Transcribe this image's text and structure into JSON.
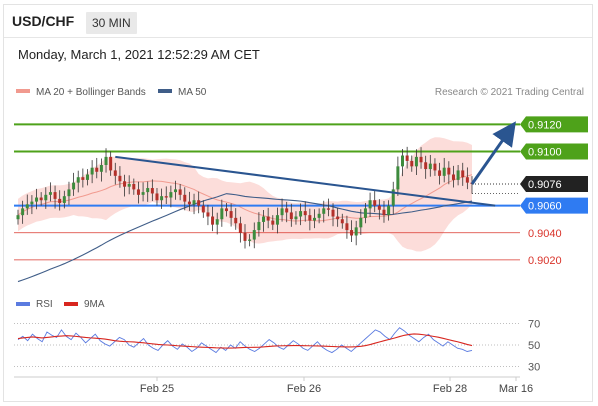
{
  "header": {
    "symbol": "USD/CHF",
    "timeframe": "30 MIN"
  },
  "date_label": "Monday, March 1, 2021 12:52:29 AM CET",
  "legend": {
    "ma20_bb": "MA 20 + Bollinger Bands",
    "ma50": "MA 50",
    "credit": "Research © 2021 Trading Central",
    "rsi": "RSI",
    "rsi_ma": "9MA"
  },
  "colors": {
    "green": "#4ea21a",
    "red": "#d9342b",
    "blue": "#2f7bf2",
    "trend": "#2a5590",
    "bb_fill": "#fbd7d3",
    "ma20": "#f19a8f",
    "ma50": "#3f5d88",
    "candle_up": "#3d8b3d",
    "candle_down": "#b3302a",
    "rsi": "#5b7be0",
    "rsi_ma": "#d8261f",
    "price_tag": "#222222"
  },
  "chart_data": [
    {
      "type": "candlestick",
      "title": "USD/CHF",
      "ylim": [
        0.9,
        0.9135
      ],
      "x_tick_labels": [
        "Feb 25",
        "Feb 26",
        "Feb 28",
        "Mar 16"
      ],
      "levels": [
        {
          "value": 0.912,
          "label": "0.9120",
          "kind": "resistance"
        },
        {
          "value": 0.91,
          "label": "0.9100",
          "kind": "resistance"
        },
        {
          "value": 0.9076,
          "label": "0.9076",
          "kind": "last"
        },
        {
          "value": 0.906,
          "label": "0.9060",
          "kind": "pivot"
        },
        {
          "value": 0.904,
          "label": "0.9040",
          "kind": "support"
        },
        {
          "value": 0.902,
          "label": "0.9020",
          "kind": "support"
        }
      ],
      "candle_closes": [
        0.9053,
        0.9058,
        0.9061,
        0.9063,
        0.9066,
        0.9064,
        0.9068,
        0.907,
        0.9065,
        0.9062,
        0.9067,
        0.9072,
        0.9077,
        0.9081,
        0.9079,
        0.9083,
        0.9088,
        0.9085,
        0.909,
        0.9096,
        0.9086,
        0.9082,
        0.9078,
        0.9074,
        0.9076,
        0.9072,
        0.9068,
        0.907,
        0.9073,
        0.9069,
        0.9064,
        0.9067,
        0.9066,
        0.907,
        0.9072,
        0.9068,
        0.9063,
        0.9061,
        0.9064,
        0.906,
        0.9055,
        0.9052,
        0.9046,
        0.905,
        0.9058,
        0.9056,
        0.9051,
        0.9047,
        0.904,
        0.9034,
        0.9035,
        0.9042,
        0.9048,
        0.9052,
        0.9049,
        0.9046,
        0.9053,
        0.9058,
        0.9055,
        0.905,
        0.9052,
        0.9056,
        0.9053,
        0.9049,
        0.9051,
        0.9054,
        0.9058,
        0.9057,
        0.9052,
        0.905,
        0.9047,
        0.9042,
        0.9038,
        0.9044,
        0.9051,
        0.9058,
        0.9064,
        0.906,
        0.9057,
        0.9053,
        0.906,
        0.9072,
        0.9089,
        0.9097,
        0.9093,
        0.9089,
        0.9096,
        0.9092,
        0.9087,
        0.9091,
        0.9086,
        0.9082,
        0.9088,
        0.9083,
        0.9079,
        0.9086,
        0.9081,
        0.9077,
        0.9076
      ],
      "ma50_start": 0.9004,
      "trendlines": [
        {
          "from": {
            "i": 21,
            "y": 0.9096
          },
          "to": {
            "i": 103,
            "y": 0.906
          }
        },
        {
          "from": {
            "i": 98,
            "y": 0.9076
          },
          "to": {
            "i": 106,
            "y": 0.9115
          },
          "kind": "forecast-arrow"
        }
      ]
    },
    {
      "type": "line",
      "title": "RSI",
      "ylim": [
        25,
        75
      ],
      "y_tick_labels": [
        "70",
        "50",
        "30"
      ],
      "series": [
        {
          "name": "RSI",
          "values": [
            55,
            58,
            54,
            60,
            56,
            53,
            62,
            59,
            57,
            64,
            58,
            55,
            61,
            57,
            52,
            56,
            60,
            54,
            51,
            49,
            53,
            57,
            55,
            50,
            48,
            52,
            56,
            50,
            47,
            45,
            50,
            54,
            49,
            46,
            51,
            48,
            44,
            47,
            52,
            49,
            46,
            43,
            48,
            45,
            50,
            47,
            53,
            49,
            46,
            44,
            47,
            51,
            55,
            52,
            48,
            46,
            50,
            54,
            51,
            47,
            45,
            49,
            53,
            48,
            45,
            43,
            46,
            50,
            47,
            44,
            48,
            52,
            56,
            60,
            64,
            62,
            58,
            55,
            61,
            66,
            63,
            59,
            56,
            53,
            57,
            60,
            55,
            52,
            49,
            53,
            50,
            47,
            46,
            44,
            45
          ]
        },
        {
          "name": "9MA",
          "values": [
            56,
            56.5,
            57,
            57.5,
            57,
            56.5,
            57,
            57.5,
            58,
            58.3,
            58.6,
            58.4,
            58,
            57.5,
            57,
            56.6,
            56.3,
            56,
            55.5,
            54.8,
            54,
            53.5,
            53.2,
            53,
            52.8,
            52.4,
            52,
            51.5,
            51,
            50.5,
            50.2,
            50,
            49.7,
            49.3,
            49,
            48.8,
            48.5,
            48.2,
            48,
            47.8,
            47.6,
            47.4,
            47.3,
            47.2,
            47.2,
            47.3,
            47.5,
            47.7,
            47.8,
            47.9,
            48,
            48.3,
            48.7,
            49,
            49.2,
            49.3,
            49.4,
            49.5,
            49.5,
            49.4,
            49.3,
            49.2,
            49.1,
            49,
            48.8,
            48.6,
            48.4,
            48.3,
            48.2,
            48.2,
            48.4,
            48.8,
            49.5,
            50.5,
            51.8,
            53,
            54.2,
            55.3,
            56.5,
            57.8,
            59,
            59.8,
            60.2,
            60,
            59.5,
            58.8,
            58,
            57.2,
            56.2,
            55.1,
            54,
            53,
            51.8,
            50.5,
            49.5
          ]
        }
      ]
    }
  ]
}
